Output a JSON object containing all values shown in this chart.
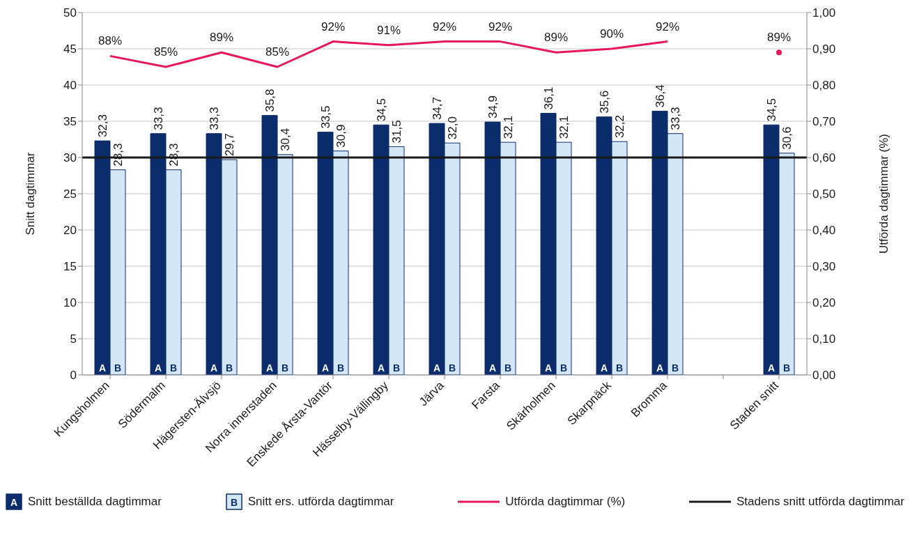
{
  "chart_data": {
    "type": "bar",
    "ylabel": "Snitt dagtimmar",
    "y2label": "Utförda dagtimmar (%)",
    "categories": [
      "Kungsholmen",
      "Södermalm",
      "Hägersten-Älvsjö",
      "Norra innerstaden",
      "Enskede Årsta-Vantör",
      "Hässelby-Vällingby",
      "Järva",
      "Farsta",
      "Skärholmen",
      "Skarpnäck",
      "Bromma",
      null,
      "Staden snitt"
    ],
    "series": [
      {
        "name": "Snitt beställda dagtimmar",
        "color": "#0b2d6b",
        "values": [
          32.3,
          33.3,
          33.3,
          35.8,
          33.5,
          34.5,
          34.7,
          34.9,
          36.1,
          35.6,
          36.4,
          null,
          34.5
        ],
        "value_labels": [
          "32,3",
          "33,3",
          "33,3",
          "35,8",
          "33,5",
          "34,5",
          "34,7",
          "34,9",
          "36,1",
          "35,6",
          "36,4",
          null,
          "34,5"
        ]
      },
      {
        "name": "Snitt ers. utförda dagtimmar",
        "color": "#d3e6f5",
        "values": [
          28.3,
          28.3,
          29.7,
          30.4,
          30.9,
          31.5,
          32.0,
          32.1,
          32.1,
          32.2,
          33.3,
          null,
          30.6
        ],
        "value_labels": [
          "28,3",
          "28,3",
          "29,7",
          "30,4",
          "30,9",
          "31,5",
          "32,0",
          "32,1",
          "32,1",
          "32,2",
          "33,3",
          null,
          "30,6"
        ]
      },
      {
        "name": "Utförda dagtimmar (%)",
        "type": "line",
        "axis": "y2",
        "color": "#e8175d",
        "values": [
          0.88,
          0.85,
          0.89,
          0.85,
          0.92,
          0.91,
          0.92,
          0.92,
          0.89,
          0.9,
          0.92,
          null,
          0.89
        ],
        "value_labels": [
          "88%",
          "85%",
          "89%",
          "85%",
          "92%",
          "91%",
          "92%",
          "92%",
          "89%",
          "90%",
          "92%",
          null,
          "89%"
        ]
      }
    ],
    "ylim": [
      0,
      50
    ],
    "yticks": [
      0,
      5,
      10,
      15,
      20,
      25,
      30,
      35,
      40,
      45,
      50
    ],
    "y2lim": [
      0,
      1
    ],
    "y2ticks": [
      {
        "value": 0,
        "label": "0,00"
      },
      {
        "value": 0.1,
        "label": "0,10"
      },
      {
        "value": 0.2,
        "label": "0,20"
      },
      {
        "value": 0.3,
        "label": "0,30"
      },
      {
        "value": 0.4,
        "label": "0,40"
      },
      {
        "value": 0.5,
        "label": "0,50"
      },
      {
        "value": 0.6,
        "label": "0,60"
      },
      {
        "value": 0.7,
        "label": "0,70"
      },
      {
        "value": 0.8,
        "label": "0,80"
      },
      {
        "value": 0.9,
        "label": "0,90"
      },
      {
        "value": 1,
        "label": "1,00"
      }
    ],
    "ref_lines": [
      {
        "axis": "y",
        "value": 30,
        "label": "Stadens snitt utförda dagtimmar",
        "color": "#1a1a1a"
      }
    ],
    "annotations": [
      "A",
      "B"
    ],
    "grid": "y",
    "legend": "bottom"
  }
}
